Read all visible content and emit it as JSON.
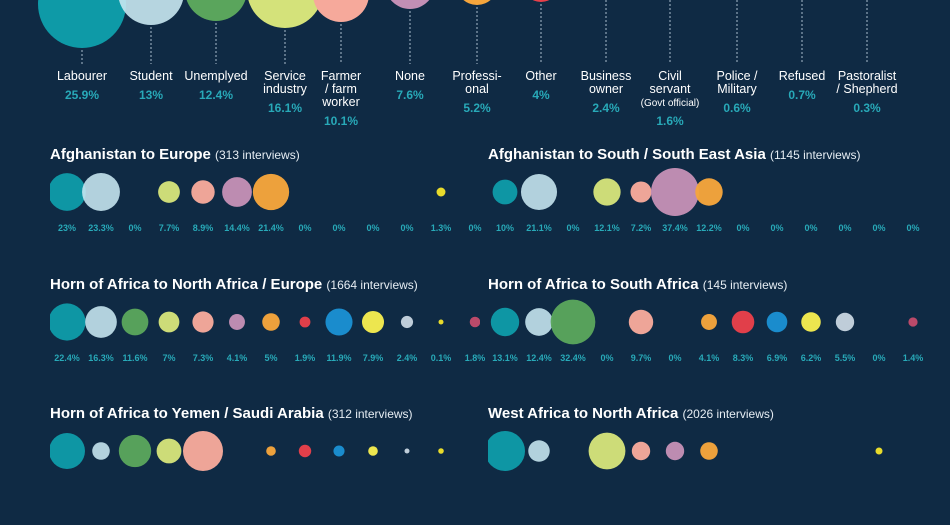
{
  "colors": {
    "background": "#0f2a44",
    "accent_text": "#28a9b8",
    "categories": [
      "#0e9aa7",
      "#c9e8f2",
      "#5aa55c",
      "#d4e27a",
      "#f6a99b",
      "#c38fb5",
      "#f5a53c",
      "#e8404a",
      "#1b8fd2",
      "#f5ec4f",
      "#c5d3de",
      "#f0e12a",
      "#c14b6b"
    ]
  },
  "legend": {
    "categories": [
      {
        "label": "Labourer",
        "value": "25.9%"
      },
      {
        "label": "Student",
        "value": "13%"
      },
      {
        "label": "Unemplyed",
        "value": "12.4%"
      },
      {
        "label": "Service\nindustry",
        "value": "16.1%"
      },
      {
        "label": "Farmer\n/ farm\nworker",
        "value": "10.1%"
      },
      {
        "label": "None",
        "value": "7.6%"
      },
      {
        "label": "Professi-\nonal",
        "value": "5.2%"
      },
      {
        "label": "Other",
        "value": "4%"
      },
      {
        "label": "Business\nowner",
        "value": "2.4%"
      },
      {
        "label": "Civil\nservant",
        "sublabel": "(Govt official)",
        "value": "1.6%"
      },
      {
        "label": "Police /\nMilitary",
        "value": "0.6%"
      },
      {
        "label": "Refused",
        "value": "0.7%"
      },
      {
        "label": "Pastoralist\n/ Shepherd",
        "value": "0.3%"
      }
    ]
  },
  "panels": [
    {
      "title": "Afghanistan to Europe",
      "count": "(313 interviews)",
      "labels": [
        "23%",
        "23.3%",
        "0%",
        "7.7%",
        "8.9%",
        "14.4%",
        "21.4%",
        "0%",
        "0%",
        "0%",
        "0%",
        "1.3%",
        "0%"
      ]
    },
    {
      "title": "Afghanistan to South / South East Asia",
      "count": "(1145 interviews)",
      "labels": [
        "10%",
        "21.1%",
        "0%",
        "12.1%",
        "7.2%",
        "37.4%",
        "12.2%",
        "0%",
        "0%",
        "0%",
        "0%",
        "0%",
        "0%"
      ]
    },
    {
      "title": "Horn of Africa to North Africa / Europe",
      "count": "(1664 interviews)",
      "labels": [
        "22.4%",
        "16.3%",
        "11.6%",
        "7%",
        "7.3%",
        "4.1%",
        "5%",
        "1.9%",
        "11.9%",
        "7.9%",
        "2.4%",
        "0.1%",
        "1.8%"
      ]
    },
    {
      "title": "Horn of Africa to South Africa",
      "count": "(145 interviews)",
      "labels": [
        "13.1%",
        "12.4%",
        "32.4%",
        "0%",
        "9.7%",
        "0%",
        "4.1%",
        "8.3%",
        "6.9%",
        "6.2%",
        "5.5%",
        "0%",
        "1.4%"
      ]
    },
    {
      "title": "Horn of Africa to Yemen / Saudi Arabia",
      "count": "(312 interviews)",
      "labels": []
    },
    {
      "title": "West Africa to North Africa",
      "count": "(2026 interviews)",
      "labels": []
    }
  ],
  "chart_data": [
    {
      "type": "bubble",
      "title": "",
      "categories": [
        "Labourer",
        "Student",
        "Unemplyed",
        "Service industry",
        "Farmer / farm worker",
        "None",
        "Professional",
        "Other",
        "Business owner",
        "Civil servant (Govt official)",
        "Police / Military",
        "Refused",
        "Pastoralist / Shepherd"
      ],
      "values": [
        25.9,
        13,
        12.4,
        16.1,
        10.1,
        7.6,
        5.2,
        4,
        2.4,
        1.6,
        0.6,
        0.7,
        0.3
      ]
    },
    {
      "type": "bubble",
      "title": "Afghanistan to Europe",
      "values": [
        23,
        23.3,
        0,
        7.7,
        8.9,
        14.4,
        21.4,
        0,
        0,
        0,
        0,
        1.3,
        0
      ]
    },
    {
      "type": "bubble",
      "title": "Afghanistan to South / South East Asia",
      "values": [
        10,
        21.1,
        0,
        12.1,
        7.2,
        37.4,
        12.2,
        0,
        0,
        0,
        0,
        0,
        0
      ]
    },
    {
      "type": "bubble",
      "title": "Horn of Africa to North Africa / Europe",
      "values": [
        22.4,
        16.3,
        11.6,
        7,
        7.3,
        4.1,
        5,
        1.9,
        11.9,
        7.9,
        2.4,
        0.1,
        1.8
      ]
    },
    {
      "type": "bubble",
      "title": "Horn of Africa to South Africa",
      "values": [
        13.1,
        12.4,
        32.4,
        0,
        9.7,
        0,
        4.1,
        8.3,
        6.9,
        6.2,
        5.5,
        0,
        1.4
      ]
    },
    {
      "type": "bubble",
      "title": "Horn of Africa to Yemen / Saudi Arabia",
      "values": [
        21,
        5,
        17,
        10,
        26,
        0,
        1.5,
        2.5,
        2,
        1.5,
        0.3,
        0.5,
        0
      ]
    },
    {
      "type": "bubble",
      "title": "West Africa to North Africa",
      "values": [
        26,
        7.5,
        0,
        22,
        5.5,
        5.5,
        5,
        0,
        0,
        0,
        0,
        0.8,
        0
      ]
    }
  ]
}
